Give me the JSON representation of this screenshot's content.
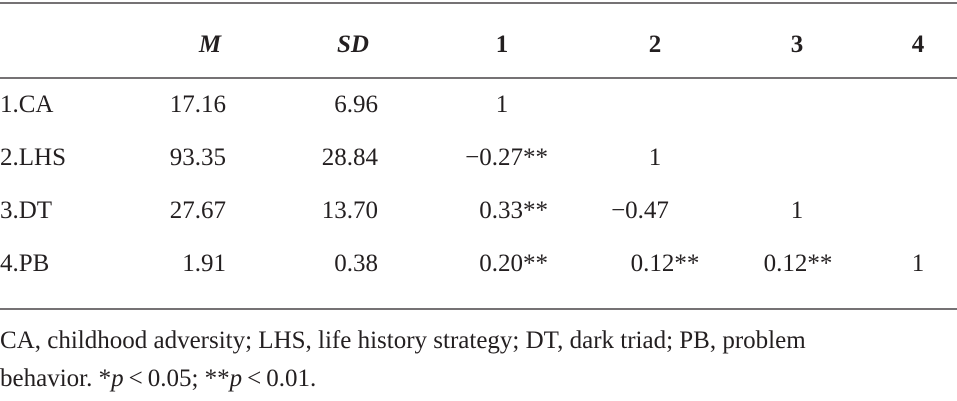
{
  "table": {
    "header": [
      "M",
      "SD",
      "1",
      "2",
      "3",
      "4"
    ],
    "rows": [
      [
        "1.CA",
        "17.16",
        "6.96",
        "1"
      ],
      [
        "2.LHS",
        "93.35",
        "28.84",
        "−0.27**",
        "1"
      ],
      [
        "3.DT",
        "27.67",
        "13.70",
        "0.33**",
        "−0.47",
        "1"
      ],
      [
        "4.PB",
        "1.91",
        "0.38",
        "0.20**",
        "0.12**",
        "0.12**",
        "1"
      ]
    ]
  },
  "footnote": [
    "CA, childhood adversity; LHS, life history strategy; DT, dark triad; PB, problem",
    "behavior. *",
    "p",
    " < 0.05; **",
    "p",
    " < 0.01."
  ]
}
